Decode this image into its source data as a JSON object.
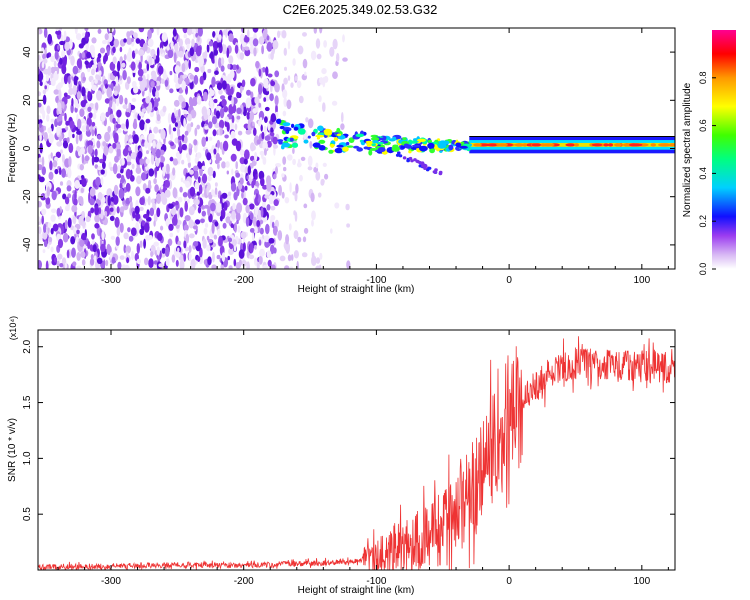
{
  "title": "C2E6.2025.349.02.53.G32",
  "chart_data": [
    {
      "type": "heatmap",
      "title": "C2E6.2025.349.02.53.G32",
      "xlabel": "Height of straight line (km)",
      "ylabel": "Frequency (Hz)",
      "xlim": [
        -355,
        125
      ],
      "ylim": [
        -50,
        50
      ],
      "xticks": [
        -300,
        -200,
        -100,
        0,
        100
      ],
      "xtick_labels": [
        "-300",
        "-200",
        "-100",
        "0",
        "100"
      ],
      "yticks": [
        -40,
        -20,
        0,
        20,
        40
      ],
      "ytick_labels": [
        "-40",
        "-20",
        "0",
        "20",
        "40"
      ],
      "colorbar": {
        "label": "Normalized spectral amplitude",
        "range": [
          0,
          1
        ],
        "ticks": [
          0.0,
          0.2,
          0.4,
          0.6,
          0.8
        ],
        "tick_labels": [
          "0.0",
          "0.2",
          "0.4",
          "0.6",
          "0.8"
        ],
        "colors": [
          "#f6f0fb",
          "#c9a6f2",
          "#8a2be2",
          "#0000ff",
          "#00e5ff",
          "#00ff00",
          "#ffff00",
          "#ff8800",
          "#ff0000",
          "#ff00aa"
        ]
      },
      "features": {
        "noise_region_km": [
          -355,
          -120
        ],
        "dense_noise_until_km": -175,
        "signal_start_km": -175,
        "signal_frequency_hz": 1.5,
        "signal_line_end_km": 125
      }
    },
    {
      "type": "line",
      "xlabel": "Height of straight line (km)",
      "ylabel": "SNR (10 * v/v)",
      "y_multiplier_label": "(x10⁴)",
      "xlim": [
        -355,
        125
      ],
      "ylim": [
        0,
        21500
      ],
      "xticks": [
        -300,
        -200,
        -100,
        0,
        100
      ],
      "xtick_labels": [
        "-300",
        "-200",
        "-100",
        "0",
        "100"
      ],
      "yticks": [
        5000,
        10000,
        15000,
        20000
      ],
      "ytick_labels": [
        "0.5",
        "1.0",
        "1.5",
        "2.0"
      ],
      "series": [
        {
          "name": "SNR",
          "color": "#ee3333",
          "x": [
            -355,
            -300,
            -250,
            -200,
            -150,
            -120,
            -100,
            -80,
            -60,
            -40,
            -30,
            -20,
            -10,
            0,
            10,
            20,
            30,
            40,
            50,
            60,
            70,
            80,
            90,
            100,
            110,
            125
          ],
          "y": [
            250,
            350,
            450,
            400,
            600,
            700,
            1200,
            2200,
            3200,
            4500,
            6500,
            9000,
            11500,
            13000,
            15000,
            16500,
            17500,
            18200,
            18500,
            18500,
            18400,
            18300,
            18200,
            18200,
            18300,
            18200
          ]
        }
      ]
    }
  ]
}
